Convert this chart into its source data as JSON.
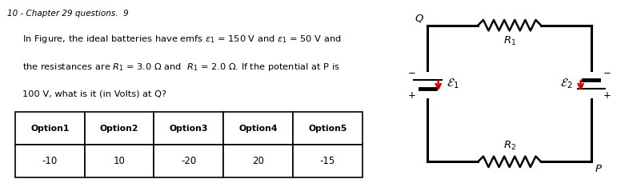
{
  "title_line": "10 - Chapter 29 questions.  9",
  "question_text_lines": [
    "In Figure, the ideal batteries have emfs ε₁ = 150 V and ε₁ = 50 V and",
    "the resistances are R₁ = 3.0 Ω and  R₁ = 2.0 Ω. If the potential at P is",
    "100 V, what is it (in Volts) at Q?"
  ],
  "table_headers": [
    "Option1",
    "Option2",
    "Option3",
    "Option4",
    "Option5"
  ],
  "table_values": [
    "-10",
    "10",
    "-20",
    "20",
    "-15"
  ],
  "bg_color": "#ffffff",
  "text_color": "#000000",
  "circuit": {
    "Q_label": "Q",
    "P_label": "P",
    "R1_label": "R₁",
    "R2_label": "R₂",
    "E1_label": "ε₁",
    "E2_label": "ε₂",
    "arrow_color": "#cc0000"
  }
}
